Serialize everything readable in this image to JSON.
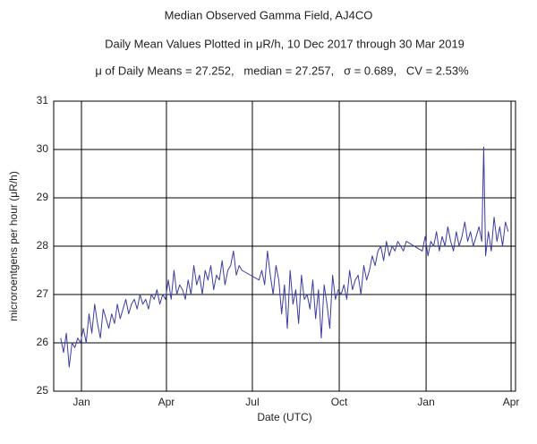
{
  "chart_data": {
    "type": "line",
    "title": "Median Observed Gamma Field, AJ4CO",
    "subtitle": "Daily Mean Values Plotted in μR/h, 10 Dec 2017 through 30 Mar 2019",
    "annotation": "μ of Daily Means = 27.252,   median = 27.257,   σ = 0.689,   CV = 2.53%",
    "x_label": "Date (UTC)",
    "y_label": "microroentgens per hour (μR/h)",
    "color": "#3c3ca4",
    "grid": true,
    "xlim": [
      -29.4,
      459.7
    ],
    "xticks": [
      {
        "value": 0,
        "label": "Jan"
      },
      {
        "value": 90,
        "label": "Apr"
      },
      {
        "value": 181,
        "label": "Jul"
      },
      {
        "value": 273,
        "label": "Oct"
      },
      {
        "value": 365,
        "label": "Jan"
      },
      {
        "value": 455,
        "label": "Apr"
      }
    ],
    "ylim": [
      25,
      31
    ],
    "yticks": [
      25,
      26,
      27,
      28,
      29,
      30,
      31
    ],
    "x": [
      -22,
      -19,
      -16,
      -13,
      -10,
      -7,
      -4,
      -1,
      2,
      5,
      8,
      11,
      14,
      17,
      20,
      23,
      26,
      29,
      32,
      35,
      38,
      41,
      44,
      47,
      50,
      53,
      56,
      59,
      62,
      65,
      68,
      71,
      74,
      77,
      80,
      83,
      86,
      89,
      92,
      95,
      98,
      101,
      104,
      107,
      110,
      113,
      116,
      119,
      122,
      125,
      128,
      131,
      134,
      137,
      140,
      143,
      146,
      149,
      152,
      155,
      158,
      161,
      164,
      167,
      170,
      188,
      191,
      194,
      197,
      200,
      203,
      206,
      209,
      212,
      215,
      218,
      221,
      224,
      227,
      230,
      233,
      236,
      239,
      242,
      245,
      248,
      251,
      254,
      257,
      260,
      263,
      266,
      269,
      272,
      275,
      278,
      281,
      284,
      287,
      290,
      293,
      296,
      299,
      302,
      305,
      308,
      311,
      314,
      317,
      320,
      323,
      326,
      329,
      332,
      335,
      338,
      341,
      344,
      361,
      364,
      367,
      370,
      373,
      376,
      379,
      382,
      385,
      388,
      391,
      394,
      397,
      400,
      403,
      406,
      409,
      412,
      415,
      418,
      421,
      424,
      426,
      428,
      431,
      434,
      437,
      440,
      443,
      446,
      449,
      452
    ],
    "values": [
      26.1,
      25.8,
      26.2,
      25.5,
      26.0,
      25.9,
      26.1,
      26.0,
      26.3,
      26.0,
      26.6,
      26.2,
      26.8,
      26.4,
      26.1,
      26.7,
      26.5,
      26.3,
      26.6,
      26.4,
      26.8,
      26.5,
      26.7,
      26.9,
      26.6,
      26.8,
      26.9,
      26.7,
      27.0,
      26.8,
      26.9,
      26.7,
      27.0,
      26.9,
      27.1,
      26.8,
      27.0,
      26.9,
      27.3,
      26.9,
      27.5,
      27.0,
      27.2,
      27.1,
      26.9,
      27.3,
      27.0,
      27.6,
      27.2,
      27.4,
      27.0,
      27.5,
      27.3,
      27.6,
      27.1,
      27.4,
      27.3,
      27.7,
      27.2,
      27.5,
      27.6,
      27.9,
      27.4,
      27.6,
      27.5,
      27.3,
      27.5,
      27.2,
      27.9,
      27.4,
      27.0,
      27.6,
      27.3,
      26.6,
      27.2,
      26.3,
      27.5,
      26.8,
      27.1,
      26.4,
      27.4,
      26.9,
      27.0,
      26.7,
      27.3,
      26.5,
      27.1,
      26.1,
      27.2,
      26.8,
      26.3,
      27.4,
      26.9,
      27.1,
      27.0,
      27.2,
      26.9,
      27.5,
      27.1,
      27.3,
      27.4,
      27.0,
      27.6,
      27.3,
      27.5,
      27.8,
      27.6,
      27.9,
      28.0,
      27.7,
      28.1,
      27.8,
      28.0,
      27.9,
      28.1,
      28.0,
      27.9,
      28.1,
      27.9,
      28.2,
      27.8,
      28.1,
      28.0,
      28.3,
      27.9,
      28.2,
      28.0,
      28.4,
      28.1,
      27.9,
      28.3,
      28.0,
      28.2,
      28.5,
      28.1,
      28.3,
      28.0,
      28.2,
      28.4,
      28.1,
      30.05,
      27.8,
      28.3,
      27.9,
      28.6,
      28.1,
      28.4,
      28.0,
      28.5,
      28.3
    ]
  }
}
